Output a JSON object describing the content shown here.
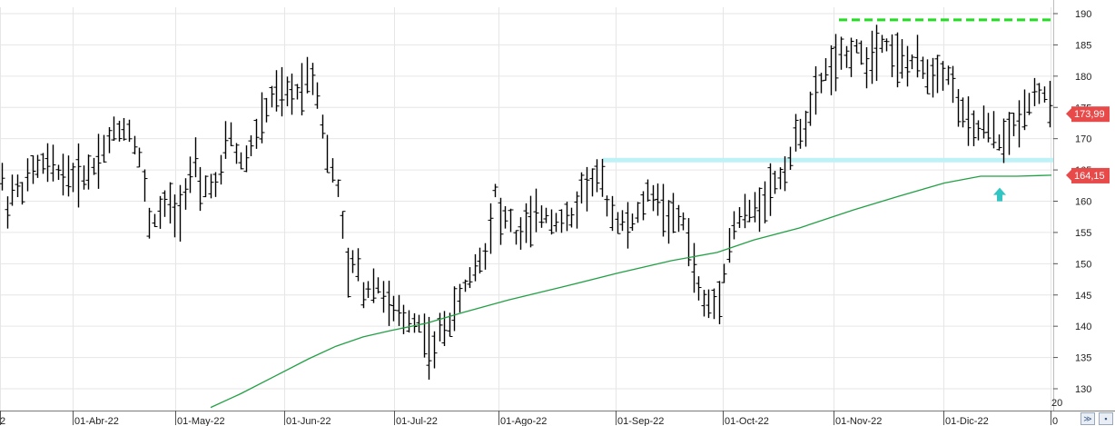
{
  "chart_data": {
    "type": "ohlc",
    "title": "",
    "xlabel": "",
    "ylabel": "",
    "ylim": [
      127,
      191
    ],
    "y_ticks": [
      130,
      135,
      140,
      145,
      150,
      155,
      160,
      165,
      170,
      175,
      180,
      185,
      190
    ],
    "x_tick_labels": [
      "2",
      "01-Abr-22",
      "01-May-22",
      "01-Jun-22",
      "01-Jul-22",
      "01-Ago-22",
      "01-Sep-22",
      "01-Oct-22",
      "01-Nov-22",
      "01-Dic-22",
      "0"
    ],
    "grid": true,
    "price_close": 173.99,
    "price_close_label": "173,99",
    "ma_value": 164.15,
    "ma_value_label": "164,15",
    "ma_color": "#22a044",
    "resistance_level": 189,
    "resistance_color": "#22dd22",
    "support_level": 166.5,
    "support_color": "#bff2f7",
    "arrow_color": "#33c4c4",
    "price_tag_color": "#e84a4a",
    "corner_text": "20",
    "anchors": [
      [
        0,
        167
      ],
      [
        5,
        158
      ],
      [
        14,
        162
      ],
      [
        25,
        162
      ],
      [
        36,
        165
      ],
      [
        50,
        166
      ],
      [
        62,
        165
      ],
      [
        75,
        164
      ],
      [
        90,
        164
      ],
      [
        100,
        165
      ],
      [
        112,
        168
      ],
      [
        125,
        171
      ],
      [
        140,
        172
      ],
      [
        152,
        168
      ],
      [
        160,
        161
      ],
      [
        165,
        156
      ],
      [
        175,
        158
      ],
      [
        185,
        160
      ],
      [
        195,
        157
      ],
      [
        205,
        163
      ],
      [
        215,
        166
      ],
      [
        220,
        161
      ],
      [
        230,
        163
      ],
      [
        240,
        162
      ],
      [
        252,
        172
      ],
      [
        262,
        166
      ],
      [
        272,
        167
      ],
      [
        282,
        171
      ],
      [
        292,
        174
      ],
      [
        300,
        177
      ],
      [
        310,
        177
      ],
      [
        320,
        177
      ],
      [
        330,
        178
      ],
      [
        342,
        181
      ],
      [
        350,
        177
      ],
      [
        355,
        172
      ],
      [
        362,
        166
      ],
      [
        372,
        162
      ],
      [
        378,
        155
      ],
      [
        383,
        148
      ],
      [
        392,
        151
      ],
      [
        400,
        145
      ],
      [
        410,
        147
      ],
      [
        420,
        146
      ],
      [
        428,
        143
      ],
      [
        436,
        142
      ],
      [
        444,
        141
      ],
      [
        455,
        141
      ],
      [
        465,
        140
      ],
      [
        470,
        137
      ],
      [
        478,
        136
      ],
      [
        485,
        140
      ],
      [
        492,
        140
      ],
      [
        500,
        142
      ],
      [
        510,
        146
      ],
      [
        518,
        148
      ],
      [
        525,
        150
      ],
      [
        535,
        152
      ],
      [
        545,
        162
      ],
      [
        552,
        156
      ],
      [
        560,
        158
      ],
      [
        568,
        154
      ],
      [
        578,
        156
      ],
      [
        588,
        157
      ],
      [
        598,
        158
      ],
      [
        610,
        157
      ],
      [
        620,
        157
      ],
      [
        630,
        157
      ],
      [
        640,
        162
      ],
      [
        650,
        163
      ],
      [
        660,
        164
      ],
      [
        670,
        159
      ],
      [
        680,
        157
      ],
      [
        690,
        156
      ],
      [
        700,
        157
      ],
      [
        712,
        161
      ],
      [
        722,
        161
      ],
      [
        732,
        158
      ],
      [
        742,
        157
      ],
      [
        752,
        157
      ],
      [
        762,
        151
      ],
      [
        770,
        145
      ],
      [
        778,
        143
      ],
      [
        790,
        144
      ],
      [
        800,
        151
      ],
      [
        808,
        156
      ],
      [
        818,
        158
      ],
      [
        828,
        158
      ],
      [
        838,
        160
      ],
      [
        848,
        162
      ],
      [
        860,
        164
      ],
      [
        868,
        166
      ],
      [
        878,
        171
      ],
      [
        890,
        173
      ],
      [
        900,
        178
      ],
      [
        910,
        181
      ],
      [
        920,
        182
      ],
      [
        932,
        183
      ],
      [
        942,
        185
      ],
      [
        952,
        182
      ],
      [
        962,
        184
      ],
      [
        972,
        186
      ],
      [
        982,
        184
      ],
      [
        992,
        182
      ],
      [
        1002,
        182
      ],
      [
        1012,
        182
      ],
      [
        1022,
        180
      ],
      [
        1032,
        181
      ],
      [
        1042,
        181
      ],
      [
        1052,
        177
      ],
      [
        1062,
        173
      ],
      [
        1072,
        171
      ],
      [
        1082,
        172
      ],
      [
        1092,
        171
      ],
      [
        1102,
        169
      ],
      [
        1112,
        171
      ],
      [
        1122,
        173
      ],
      [
        1132,
        176
      ],
      [
        1142,
        178
      ],
      [
        1150,
        177
      ],
      [
        1158,
        174
      ]
    ],
    "ma_series": [
      [
        232,
        127
      ],
      [
        265,
        129.2
      ],
      [
        300,
        131.8
      ],
      [
        340,
        134.8
      ],
      [
        370,
        136.8
      ],
      [
        400,
        138.3
      ],
      [
        430,
        139.3
      ],
      [
        470,
        140.5
      ],
      [
        510,
        142.2
      ],
      [
        560,
        144.2
      ],
      [
        620,
        146.3
      ],
      [
        680,
        148.5
      ],
      [
        740,
        150.5
      ],
      [
        790,
        151.8
      ],
      [
        830,
        153.8
      ],
      [
        880,
        155.7
      ],
      [
        940,
        158.6
      ],
      [
        990,
        160.8
      ],
      [
        1040,
        162.9
      ],
      [
        1080,
        164
      ],
      [
        1120,
        164
      ],
      [
        1158,
        164.15
      ]
    ]
  }
}
